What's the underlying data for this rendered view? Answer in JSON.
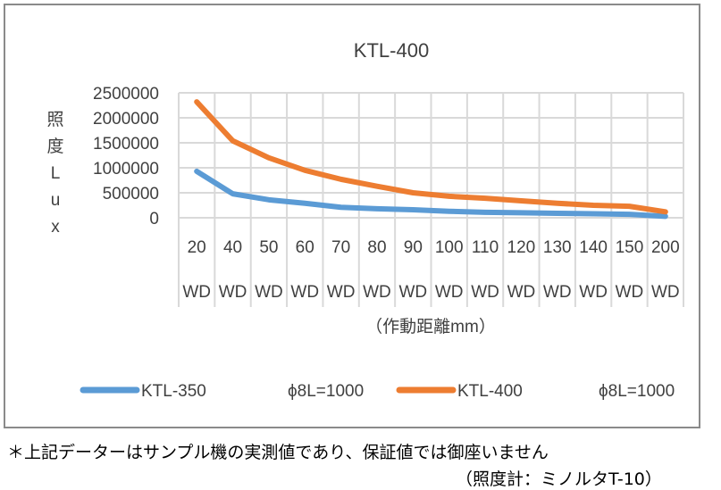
{
  "chart_data": {
    "type": "line",
    "title": "KTL-400",
    "ylabel_chars": [
      "照",
      "度",
      "L",
      "u",
      "x"
    ],
    "xlabel": "（作動距離mm）",
    "categories": [
      "20",
      "40",
      "50",
      "60",
      "70",
      "80",
      "90",
      "100",
      "110",
      "120",
      "130",
      "140",
      "150",
      "200"
    ],
    "category_suffix": "WD",
    "ylim": [
      0,
      2500000
    ],
    "yticks": [
      "0",
      "500000",
      "1000000",
      "1500000",
      "2000000",
      "2500000"
    ],
    "grid": true,
    "legend_position": "bottom",
    "series": [
      {
        "name": "KTL-350",
        "name2": "ϕ8L=1000",
        "color": "#5b9bd5",
        "values": [
          930000,
          480000,
          360000,
          290000,
          210000,
          180000,
          160000,
          130000,
          110000,
          100000,
          90000,
          80000,
          70000,
          30000
        ]
      },
      {
        "name": "KTL-400",
        "name2": "ϕ8L=1000",
        "color": "#ed7d31",
        "values": [
          2320000,
          1540000,
          1200000,
          950000,
          770000,
          630000,
          500000,
          430000,
          390000,
          340000,
          290000,
          250000,
          230000,
          120000
        ]
      }
    ]
  },
  "notes": {
    "line1": "＊上記データーはサンプル機の実測値であり、保証値では御座いません",
    "line2": "（照度計：ミノルタT-10）"
  }
}
